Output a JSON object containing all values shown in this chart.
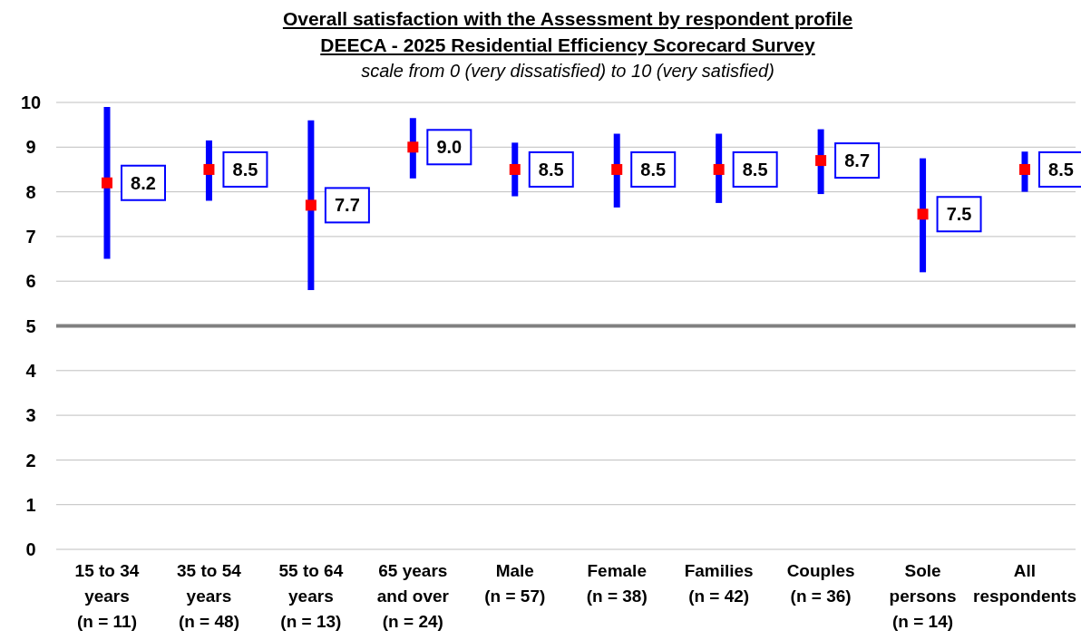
{
  "chart_data": {
    "type": "scatter",
    "title": "Overall satisfaction with the Assessment by respondent profile",
    "subtitle": "DEECA - 2025 Residential Efficiency Scorecard Survey",
    "annotations": [
      "scale from 0 (very dissatisfied) to 10 (very satisfied)"
    ],
    "categories": [
      "15 to 34 years (n = 11)",
      "35 to 54 years (n = 48)",
      "55 to 64 years (n = 13)",
      "65 years and over (n = 24)",
      "Male (n = 57)",
      "Female (n = 38)",
      "Families (n = 42)",
      "Couples (n = 36)",
      "Sole persons (n = 14)",
      "All respondents"
    ],
    "values": [
      8.2,
      8.5,
      7.7,
      9.0,
      8.5,
      8.5,
      8.5,
      8.7,
      7.5,
      8.5
    ],
    "value_labels": [
      "8.2",
      "8.5",
      "7.7",
      "9.0",
      "8.5",
      "8.5",
      "8.5",
      "8.7",
      "7.5",
      "8.5"
    ],
    "errors": [
      [
        6.5,
        9.9
      ],
      [
        7.8,
        9.15
      ],
      [
        5.8,
        9.6
      ],
      [
        8.3,
        9.65
      ],
      [
        7.9,
        9.1
      ],
      [
        7.65,
        9.3
      ],
      [
        7.75,
        9.3
      ],
      [
        7.95,
        9.4
      ],
      [
        6.2,
        8.75
      ],
      [
        8.0,
        8.9
      ]
    ],
    "color": "#ff0000",
    "marker": "square",
    "ylim": [
      0,
      10
    ],
    "yticks": [
      0,
      1,
      2,
      3,
      4,
      5,
      6,
      7,
      8,
      9,
      10
    ],
    "grid": "y",
    "ref_lines": [
      {
        "axis": "y",
        "value": 5,
        "color": "#808080"
      }
    ]
  }
}
